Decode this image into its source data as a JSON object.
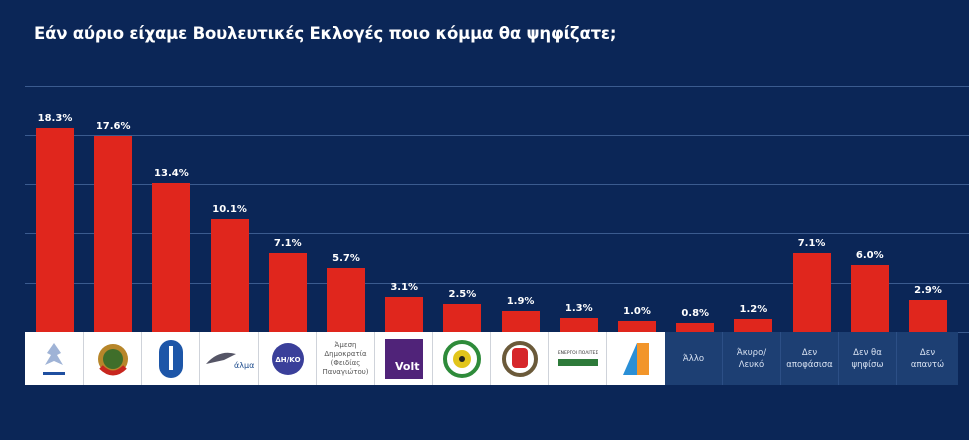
{
  "chart_data": {
    "type": "bar",
    "title": "Εάν αύριο είχαμε Βουλευτικές Εκλογές ποιο κόμμα θα ψηφίζατε;",
    "categories": [
      "Συναγερμός logo",
      "ΑΚΕΛ logo",
      "ΔΗΚΟ-style blue logo",
      "Άλμα logo",
      "ΔΗ.ΚΟ logo",
      "Άμεση Δημοκρατία (Φειδίας Παναγιώτου)",
      "Volt",
      "Κίνημα Οικολόγων logo",
      "ΕΛΑΜ logo",
      "Ενεργοί Πολίτες logo",
      "Party logo",
      "Άλλο",
      "Άκυρο/ Λευκό",
      "Δεν αποφάσισα",
      "Δεν θα ψηφίσω",
      "Δεν απαντώ"
    ],
    "values": [
      18.3,
      17.6,
      13.4,
      10.1,
      7.1,
      5.7,
      3.1,
      2.5,
      1.9,
      1.3,
      1.0,
      0.8,
      1.2,
      7.1,
      6.0,
      2.9
    ],
    "value_labels": [
      "18.3%",
      "17.6%",
      "13.4%",
      "10.1%",
      "7.1%",
      "5.7%",
      "3.1%",
      "2.5%",
      "1.9%",
      "1.3%",
      "1.0%",
      "0.8%",
      "1.2%",
      "7.1%",
      "6.0%",
      "2.9%"
    ],
    "xlabel": "",
    "ylabel": "",
    "grid": true,
    "colors": {
      "bar": "#e0261d",
      "background": "#0b2657"
    }
  },
  "labels": {
    "amesi": "Άμεση Δημοκρατία (Φειδίας Παναγιώτου)",
    "volt": "Volt",
    "alma": "άλμα",
    "diko": "ΔΗ/ΚΟ",
    "energoi": "ΕΝΕΡΓΟΙ ΠΟΛΙΤΕΣ",
    "cats": [
      "Άλλο",
      "Άκυρο/ Λευκό",
      "Δεν αποφάσισα",
      "Δεν θα ψηφίσω",
      "Δεν απαντώ"
    ]
  }
}
